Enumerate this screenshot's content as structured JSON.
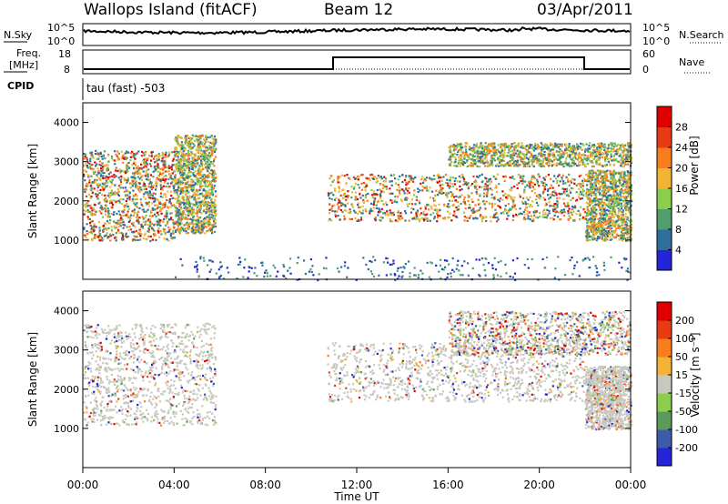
{
  "header": {
    "site": "Wallops Island (fitACF)",
    "beam": "Beam 12",
    "date": "03/Apr/2011"
  },
  "noise_panel": {
    "left_label": "N.Sky",
    "right_label": "N.Search",
    "left_ticks": [
      "10^5",
      "10^0"
    ],
    "right_ticks": [
      "10^5",
      "10^0"
    ]
  },
  "freq_panel": {
    "left_label_1": "Freq.",
    "left_label_2": "[MHz]",
    "left_ticks": [
      "18",
      "8"
    ],
    "right_label": "Nave",
    "right_ticks": [
      "60",
      "0"
    ],
    "cpid_label": "CPID"
  },
  "cpid_panel": {
    "text": "tau (fast) -503"
  },
  "x_axis": {
    "label": "Time UT",
    "ticks": [
      "00:00",
      "04:00",
      "08:00",
      "12:00",
      "16:00",
      "20:00",
      "00:00"
    ]
  },
  "chart_data": [
    {
      "type": "heatmap",
      "ylabel": "Slant Range [km]",
      "y_ticks": [
        1000,
        2000,
        3000,
        4000
      ],
      "ylim": [
        0,
        4500
      ],
      "xlim_hours": [
        0,
        24
      ],
      "colorbar": {
        "label": "Power [dB]",
        "ticks": [
          "4",
          "8",
          "12",
          "16",
          "20",
          "24",
          "28"
        ],
        "colors": [
          "#2424d8",
          "#2f6f9e",
          "#4e9e6e",
          "#8ccd4c",
          "#f5b335",
          "#f87e1c",
          "#e83a13",
          "#e00000"
        ]
      },
      "bands": [
        {
          "t": [
            0,
            4
          ],
          "r": [
            1000,
            3300
          ],
          "level": "high"
        },
        {
          "t": [
            4,
            5.8
          ],
          "r": [
            1200,
            3700
          ],
          "level": "mid"
        },
        {
          "t": [
            10.7,
            22
          ],
          "r": [
            1500,
            2700
          ],
          "level": "high"
        },
        {
          "t": [
            16,
            24
          ],
          "r": [
            2900,
            3500
          ],
          "level": "mid"
        },
        {
          "t": [
            22,
            24
          ],
          "r": [
            1000,
            2800
          ],
          "level": "mid"
        },
        {
          "t": [
            4,
            24
          ],
          "r": [
            0,
            600
          ],
          "level": "low"
        }
      ]
    },
    {
      "type": "heatmap",
      "ylabel": "Slant Range [km]",
      "y_ticks": [
        1000,
        2000,
        3000,
        4000
      ],
      "ylim": [
        0,
        4500
      ],
      "xlim_hours": [
        0,
        24
      ],
      "colorbar": {
        "label": "Velocity [m s⁻¹]",
        "ticks": [
          "200",
          "100",
          "50",
          "15",
          "-15",
          "-50",
          "-100",
          "-200"
        ],
        "colors": [
          "#2424d8",
          "#3c5ba8",
          "#5c9a5c",
          "#8ccd4c",
          "#c8c8c0",
          "#f5b335",
          "#f87e1c",
          "#e83a13",
          "#e00000"
        ]
      },
      "bands": [
        {
          "t": [
            0,
            5.8
          ],
          "r": [
            1100,
            3700
          ],
          "level": "ground"
        },
        {
          "t": [
            10.7,
            22
          ],
          "r": [
            1700,
            3200
          ],
          "level": "ground"
        },
        {
          "t": [
            16,
            24
          ],
          "r": [
            2900,
            4000
          ],
          "level": "mixed"
        },
        {
          "t": [
            22,
            24
          ],
          "r": [
            1000,
            2600
          ],
          "level": "ground"
        }
      ]
    }
  ]
}
